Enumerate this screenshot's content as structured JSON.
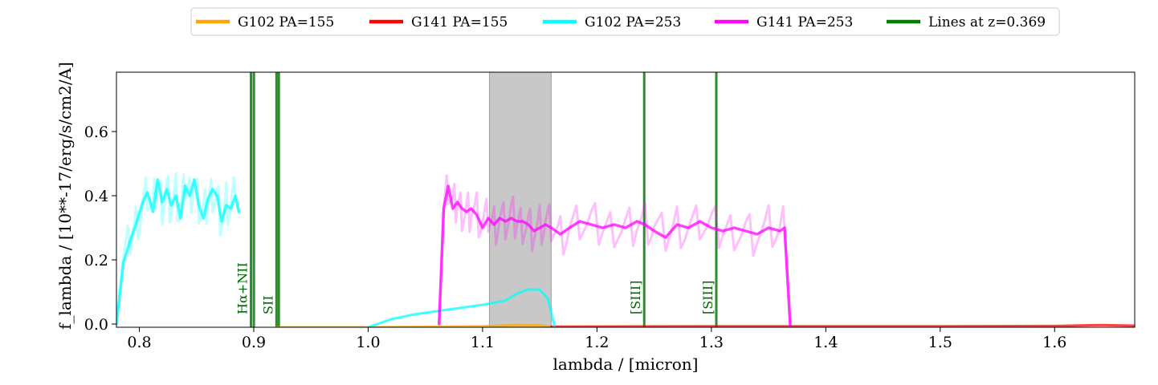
{
  "chart_data": {
    "type": "line",
    "title": "",
    "xlabel": "lambda / [micron]",
    "ylabel": "f_lambda / [10**-17/erg/s/cm2/A]",
    "xlim": [
      0.78,
      1.67
    ],
    "ylim": [
      -0.01,
      0.785
    ],
    "xticks": [
      0.8,
      0.9,
      1.0,
      1.1,
      1.2,
      1.3,
      1.4,
      1.5,
      1.6
    ],
    "xtick_labels": [
      "0.8",
      "0.9",
      "1.0",
      "1.1",
      "1.2",
      "1.3",
      "1.4",
      "1.5",
      "1.6"
    ],
    "yticks": [
      0.0,
      0.2,
      0.4,
      0.6
    ],
    "ytick_labels": [
      "0.0",
      "0.2",
      "0.4",
      "0.6"
    ],
    "grid": false,
    "legend_position": "top-center, outside plot",
    "shaded_band": {
      "x0": 1.106,
      "x1": 1.16,
      "color": "#c8c8c8"
    },
    "series": [
      {
        "name": "G102 PA=155",
        "color": "#ffa500",
        "style": "model",
        "x": [
          0.92,
          1.0,
          1.1,
          1.13,
          1.15,
          1.16
        ],
        "y": [
          -0.01,
          -0.01,
          -0.007,
          -0.003,
          -0.004,
          -0.008
        ]
      },
      {
        "name": "G141 PA=155",
        "color": "#ff0000",
        "style": "model",
        "x": [
          1.16,
          1.3,
          1.4,
          1.5,
          1.6,
          1.64,
          1.67
        ],
        "y": [
          -0.008,
          -0.007,
          -0.007,
          -0.007,
          -0.006,
          -0.003,
          -0.005
        ]
      },
      {
        "name": "G102 PA=253",
        "color": "#00ffff",
        "style": "spectrum",
        "x": [
          0.78,
          0.786,
          0.792,
          0.797,
          0.803,
          0.807,
          0.812,
          0.816,
          0.82,
          0.824,
          0.828,
          0.832,
          0.836,
          0.84,
          0.844,
          0.848,
          0.852,
          0.856,
          0.86,
          0.864,
          0.868,
          0.872,
          0.876,
          0.88,
          0.884,
          0.887
        ],
        "y": [
          0.0,
          0.19,
          0.26,
          0.31,
          0.38,
          0.41,
          0.35,
          0.45,
          0.38,
          0.42,
          0.37,
          0.4,
          0.33,
          0.43,
          0.4,
          0.45,
          0.37,
          0.33,
          0.39,
          0.42,
          0.4,
          0.32,
          0.37,
          0.36,
          0.4,
          0.35
        ]
      },
      {
        "name": "G102 PA=253 model",
        "color": "#00ffff",
        "style": "model",
        "x": [
          1.0,
          1.02,
          1.04,
          1.06,
          1.08,
          1.1,
          1.12,
          1.13,
          1.14,
          1.15,
          1.157,
          1.163
        ],
        "y": [
          -0.01,
          0.015,
          0.03,
          0.04,
          0.05,
          0.06,
          0.073,
          0.095,
          0.108,
          0.107,
          0.08,
          -0.008
        ]
      },
      {
        "name": "G141 PA=253",
        "color": "#ff00ff",
        "style": "spectrum",
        "x": [
          1.062,
          1.066,
          1.07,
          1.074,
          1.078,
          1.082,
          1.086,
          1.09,
          1.095,
          1.1,
          1.105,
          1.11,
          1.115,
          1.12,
          1.125,
          1.13,
          1.135,
          1.14,
          1.145,
          1.15,
          1.155,
          1.16,
          1.168,
          1.176,
          1.185,
          1.195,
          1.205,
          1.215,
          1.225,
          1.235,
          1.242,
          1.25,
          1.26,
          1.27,
          1.28,
          1.29,
          1.3,
          1.31,
          1.32,
          1.33,
          1.34,
          1.35,
          1.36,
          1.364,
          1.369
        ],
        "y": [
          0.0,
          0.36,
          0.43,
          0.36,
          0.38,
          0.36,
          0.35,
          0.36,
          0.34,
          0.3,
          0.33,
          0.31,
          0.33,
          0.32,
          0.33,
          0.32,
          0.32,
          0.31,
          0.29,
          0.3,
          0.31,
          0.3,
          0.28,
          0.3,
          0.32,
          0.31,
          0.3,
          0.31,
          0.3,
          0.32,
          0.31,
          0.29,
          0.27,
          0.31,
          0.3,
          0.32,
          0.3,
          0.29,
          0.3,
          0.29,
          0.28,
          0.3,
          0.29,
          0.3,
          -0.01
        ]
      }
    ],
    "legend": [
      {
        "name": "G102 PA=155",
        "color": "#ffa500"
      },
      {
        "name": "G141 PA=155",
        "color": "#ff0000"
      },
      {
        "name": "G102 PA=253",
        "color": "#00ffff"
      },
      {
        "name": "G141 PA=253",
        "color": "#ff00ff"
      },
      {
        "name": "Lines at z=0.369",
        "color": "#008000"
      }
    ],
    "emission_lines": {
      "color": "#2e8b2e",
      "lines": [
        {
          "label": "Hα+NII",
          "x": [
            0.8976,
            0.9001
          ],
          "label_x": 0.8976
        },
        {
          "label": "SII",
          "x": [
            0.9199,
            0.9219
          ],
          "label_x": 0.9199
        },
        {
          "label": "[SIII]",
          "x": [
            1.2413
          ],
          "label_x": 1.2413
        },
        {
          "label": "[SIII]",
          "x": [
            1.3043
          ],
          "label_x": 1.3043
        }
      ]
    }
  }
}
